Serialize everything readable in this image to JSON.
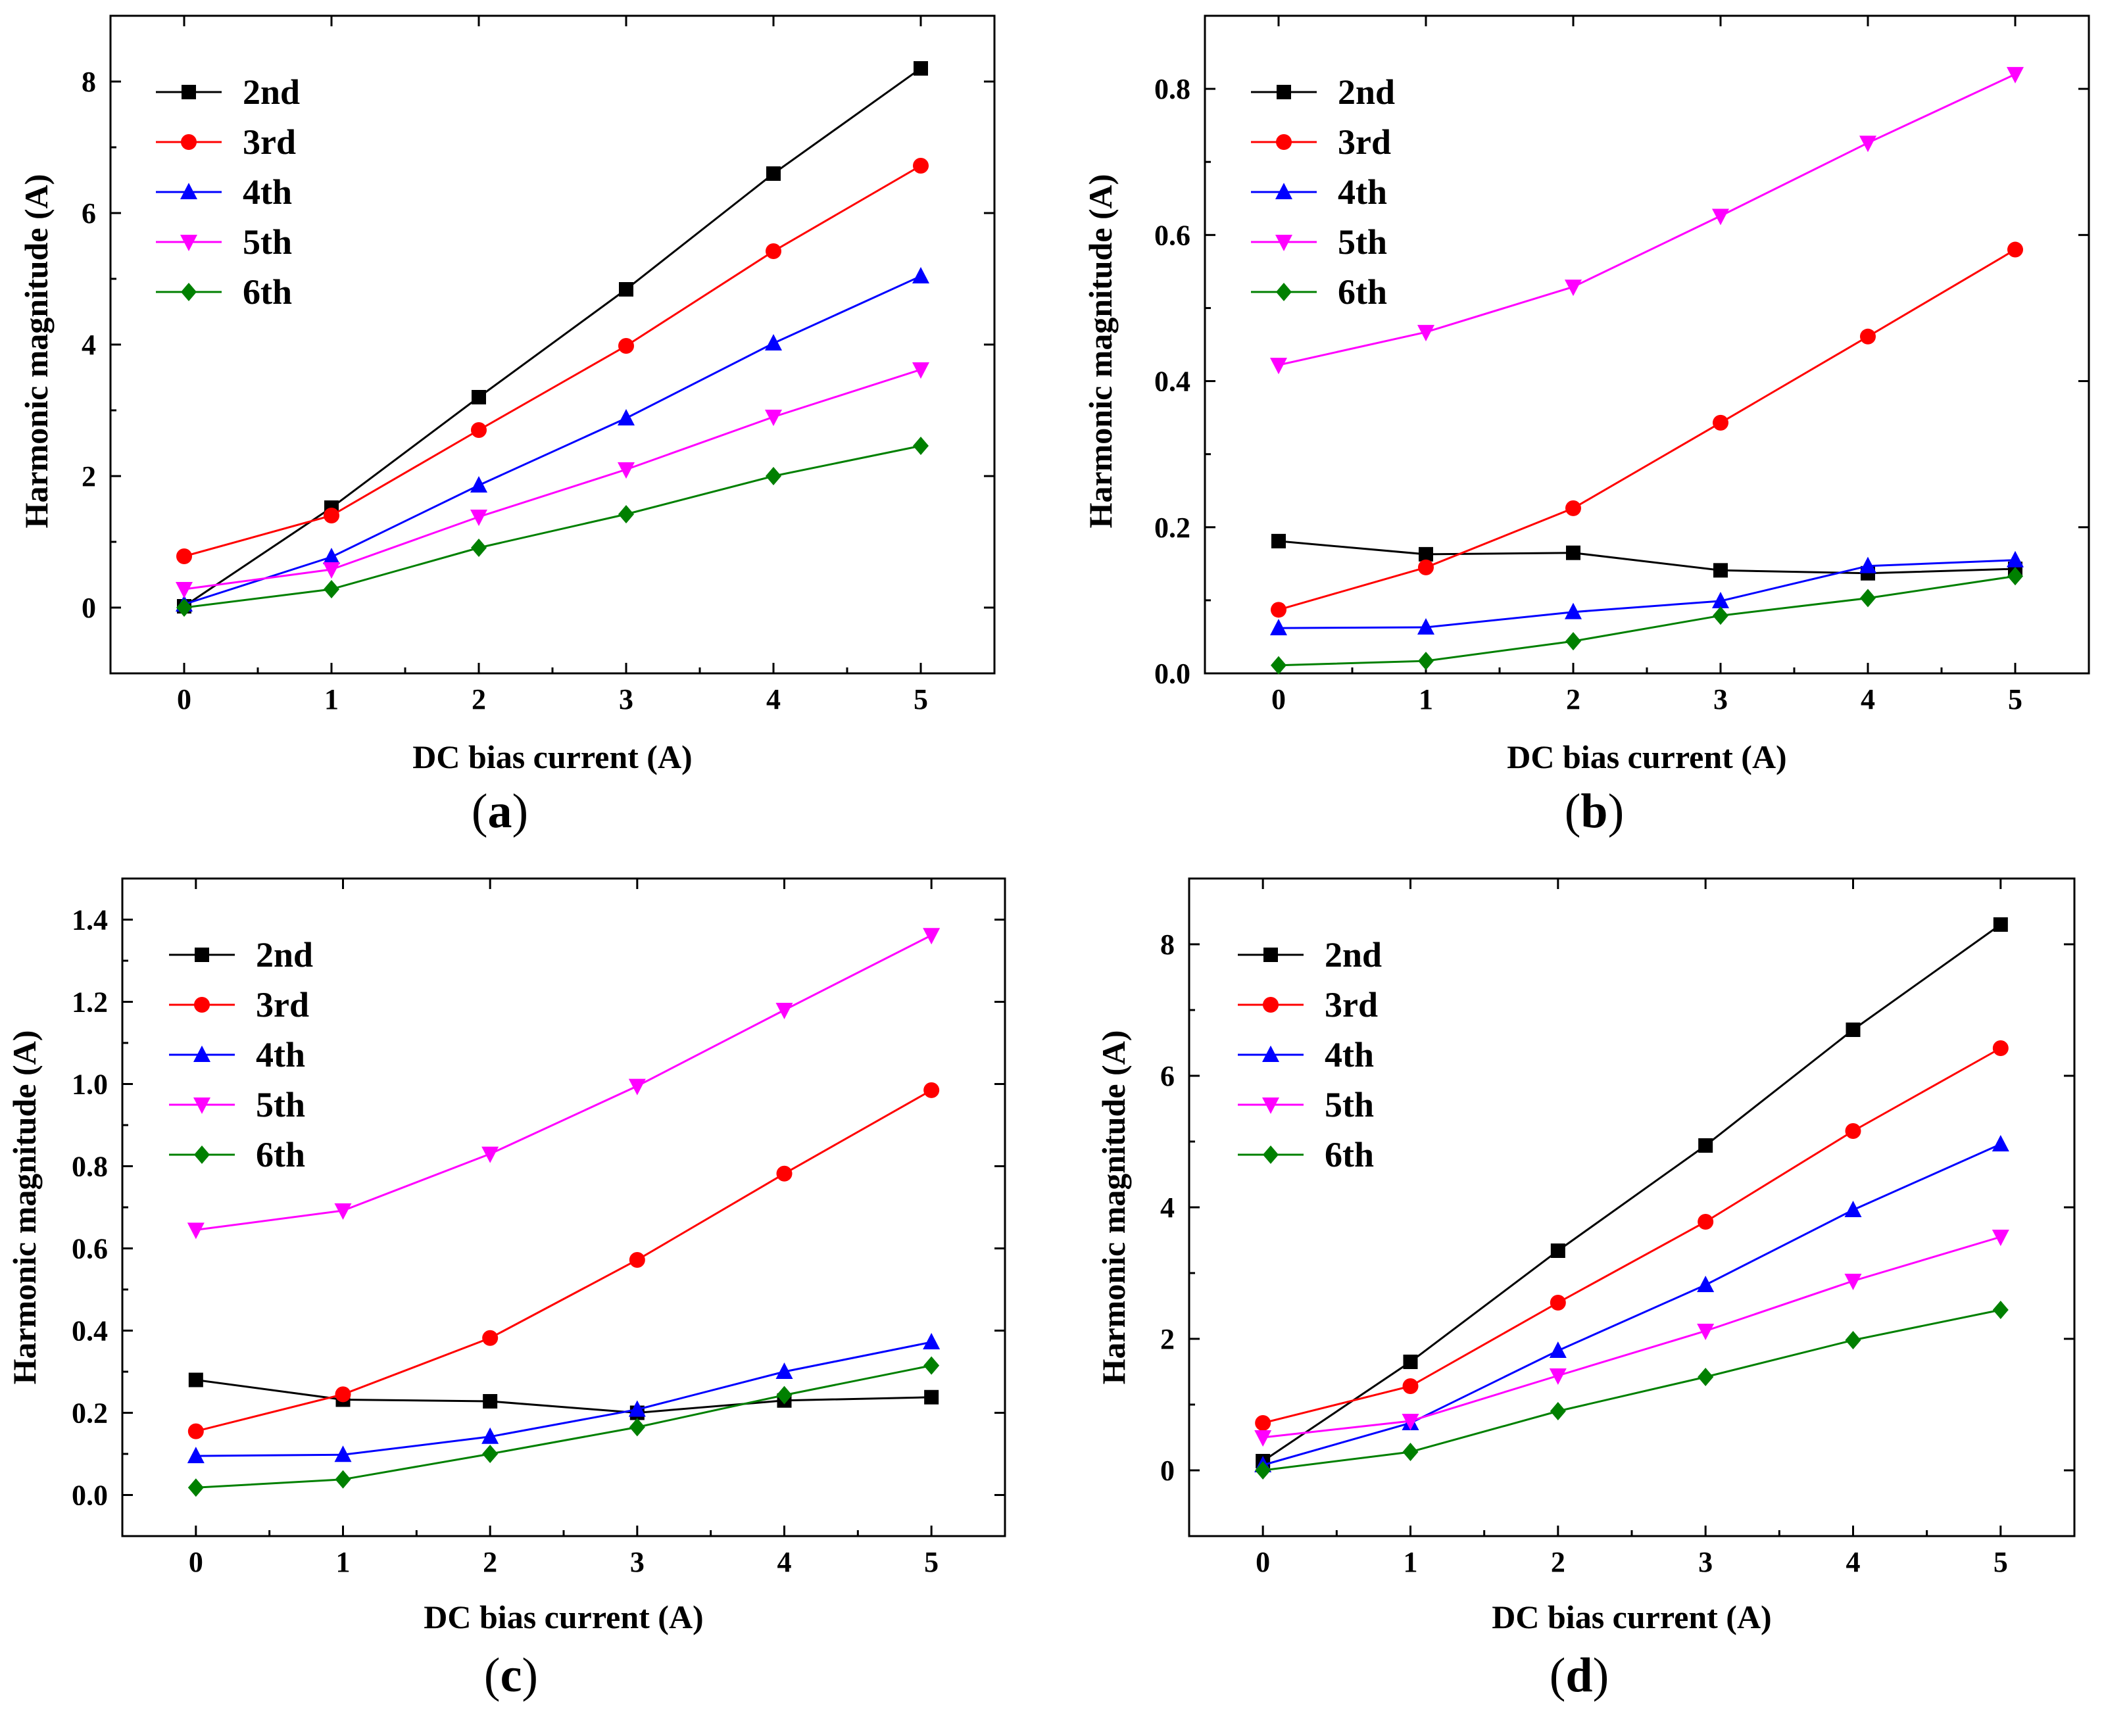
{
  "chart_data": [
    {
      "id": "a",
      "type": "line",
      "panel_label": "a",
      "xlabel": "DC bias current (A)",
      "ylabel": "Harmonic magnitude (A)",
      "x": [
        0,
        1,
        2,
        3,
        4,
        5
      ],
      "xlim": [
        -0.5,
        5.5
      ],
      "ylim": [
        -1,
        9
      ],
      "yticks": [
        0,
        2,
        4,
        6,
        8
      ],
      "ytick_labels": [
        "0",
        "2",
        "4",
        "6",
        "8"
      ],
      "xticks": [
        0,
        1,
        2,
        3,
        4,
        5
      ],
      "xtick_labels": [
        "0",
        "1",
        "2",
        "3",
        "4",
        "5"
      ],
      "legend_position": "top-left",
      "series": [
        {
          "name": "2nd",
          "color": "#000000",
          "marker": "square",
          "values": [
            0.02,
            1.52,
            3.2,
            4.84,
            6.6,
            8.2
          ]
        },
        {
          "name": "3rd",
          "color": "#ff0000",
          "marker": "circle",
          "values": [
            0.78,
            1.4,
            2.7,
            3.98,
            5.42,
            6.72
          ]
        },
        {
          "name": "4th",
          "color": "#0000ff",
          "marker": "triangle-up",
          "values": [
            0.05,
            0.77,
            1.86,
            2.88,
            4.02,
            5.04
          ]
        },
        {
          "name": "5th",
          "color": "#ff00ff",
          "marker": "triangle-down",
          "values": [
            0.28,
            0.58,
            1.38,
            2.1,
            2.9,
            3.62
          ]
        },
        {
          "name": "6th",
          "color": "#008000",
          "marker": "diamond",
          "values": [
            0.0,
            0.28,
            0.91,
            1.42,
            2.0,
            2.46
          ]
        }
      ]
    },
    {
      "id": "b",
      "type": "line",
      "panel_label": "b",
      "xlabel": "DC bias current (A)",
      "ylabel": "Harmonic magnitude (A)",
      "x": [
        0,
        1,
        2,
        3,
        4,
        5
      ],
      "xlim": [
        -0.5,
        5.5
      ],
      "ylim": [
        0,
        0.9
      ],
      "yticks": [
        0.0,
        0.2,
        0.4,
        0.6,
        0.8
      ],
      "ytick_labels": [
        "0.0",
        "0.2",
        "0.4",
        "0.6",
        "0.8"
      ],
      "xticks": [
        0,
        1,
        2,
        3,
        4,
        5
      ],
      "xtick_labels": [
        "0",
        "1",
        "2",
        "3",
        "4",
        "5"
      ],
      "legend_position": "top-left",
      "series": [
        {
          "name": "2nd",
          "color": "#000000",
          "marker": "square",
          "values": [
            0.181,
            0.163,
            0.165,
            0.141,
            0.137,
            0.143
          ]
        },
        {
          "name": "3rd",
          "color": "#ff0000",
          "marker": "circle",
          "values": [
            0.087,
            0.145,
            0.226,
            0.343,
            0.461,
            0.58
          ]
        },
        {
          "name": "4th",
          "color": "#0000ff",
          "marker": "triangle-up",
          "values": [
            0.062,
            0.063,
            0.084,
            0.099,
            0.147,
            0.155
          ]
        },
        {
          "name": "5th",
          "color": "#ff00ff",
          "marker": "triangle-down",
          "values": [
            0.422,
            0.467,
            0.529,
            0.626,
            0.726,
            0.82
          ]
        },
        {
          "name": "6th",
          "color": "#008000",
          "marker": "diamond",
          "values": [
            0.011,
            0.017,
            0.044,
            0.079,
            0.103,
            0.133
          ]
        }
      ]
    },
    {
      "id": "c",
      "type": "line",
      "panel_label": "c",
      "xlabel": "DC bias current (A)",
      "ylabel": "Harmonic magnitude (A)",
      "x": [
        0,
        1,
        2,
        3,
        4,
        5
      ],
      "xlim": [
        -0.5,
        5.5
      ],
      "ylim": [
        -0.1,
        1.5
      ],
      "yticks": [
        0.0,
        0.2,
        0.4,
        0.6,
        0.8,
        1.0,
        1.2,
        1.4
      ],
      "ytick_labels": [
        "0.0",
        "0.2",
        "0.4",
        "0.6",
        "0.8",
        "1.0",
        "1.2",
        "1.4"
      ],
      "xticks": [
        0,
        1,
        2,
        3,
        4,
        5
      ],
      "xtick_labels": [
        "0",
        "1",
        "2",
        "3",
        "4",
        "5"
      ],
      "legend_position": "top-left",
      "series": [
        {
          "name": "2nd",
          "color": "#000000",
          "marker": "square",
          "values": [
            0.28,
            0.232,
            0.228,
            0.2,
            0.23,
            0.238
          ]
        },
        {
          "name": "3rd",
          "color": "#ff0000",
          "marker": "circle",
          "values": [
            0.155,
            0.245,
            0.382,
            0.572,
            0.782,
            0.985
          ]
        },
        {
          "name": "4th",
          "color": "#0000ff",
          "marker": "triangle-up",
          "values": [
            0.095,
            0.098,
            0.142,
            0.208,
            0.3,
            0.372
          ]
        },
        {
          "name": "5th",
          "color": "#ff00ff",
          "marker": "triangle-down",
          "values": [
            0.645,
            0.692,
            0.83,
            0.995,
            1.18,
            1.362
          ]
        },
        {
          "name": "6th",
          "color": "#008000",
          "marker": "diamond",
          "values": [
            0.018,
            0.038,
            0.1,
            0.165,
            0.243,
            0.315
          ]
        }
      ]
    },
    {
      "id": "d",
      "type": "line",
      "panel_label": "d",
      "xlabel": "DC bias current (A)",
      "ylabel": "Harmonic magnitude (A)",
      "x": [
        0,
        1,
        2,
        3,
        4,
        5
      ],
      "xlim": [
        -0.5,
        5.5
      ],
      "ylim": [
        -1,
        9
      ],
      "yticks": [
        0,
        2,
        4,
        6,
        8
      ],
      "ytick_labels": [
        "0",
        "2",
        "4",
        "6",
        "8"
      ],
      "xticks": [
        0,
        1,
        2,
        3,
        4,
        5
      ],
      "xtick_labels": [
        "0",
        "1",
        "2",
        "3",
        "4",
        "5"
      ],
      "legend_position": "top-left",
      "series": [
        {
          "name": "2nd",
          "color": "#000000",
          "marker": "square",
          "values": [
            0.14,
            1.65,
            3.34,
            4.94,
            6.7,
            8.3
          ]
        },
        {
          "name": "3rd",
          "color": "#ff0000",
          "marker": "circle",
          "values": [
            0.72,
            1.28,
            2.55,
            3.78,
            5.16,
            6.42
          ]
        },
        {
          "name": "4th",
          "color": "#0000ff",
          "marker": "triangle-up",
          "values": [
            0.08,
            0.72,
            1.82,
            2.82,
            3.96,
            4.96
          ]
        },
        {
          "name": "5th",
          "color": "#ff00ff",
          "marker": "triangle-down",
          "values": [
            0.5,
            0.75,
            1.44,
            2.12,
            2.88,
            3.55
          ]
        },
        {
          "name": "6th",
          "color": "#008000",
          "marker": "diamond",
          "values": [
            0.0,
            0.28,
            0.9,
            1.42,
            1.98,
            2.44
          ]
        }
      ]
    }
  ]
}
